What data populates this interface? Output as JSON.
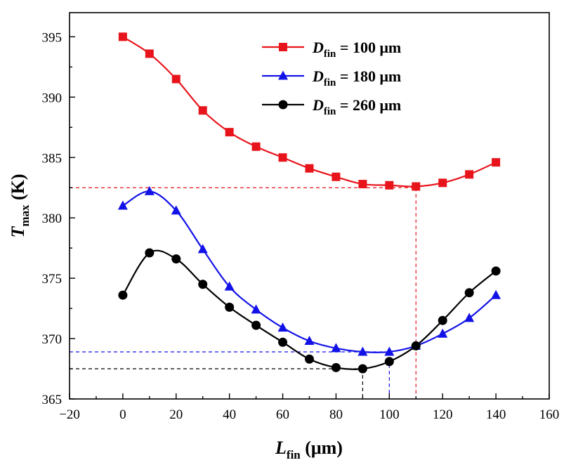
{
  "chart_data": {
    "type": "line",
    "xlabel": {
      "main": "L",
      "sub": "fin",
      "unit": " (μm)"
    },
    "ylabel": {
      "main": "T",
      "sub": "max",
      "unit": " (K)"
    },
    "xlim": [
      -20,
      160
    ],
    "ylim": [
      365,
      397
    ],
    "xticks": [
      -20,
      0,
      20,
      40,
      60,
      80,
      100,
      120,
      140,
      160
    ],
    "yticks": [
      365,
      370,
      375,
      380,
      385,
      390,
      395
    ],
    "grid": false,
    "legend_position": "top-right",
    "series": [
      {
        "legend": {
          "main": "D",
          "sub": "fin",
          "rest": " = 100 μm"
        },
        "color": "#e8141b",
        "marker": "square",
        "x": [
          0,
          10,
          20,
          30,
          40,
          50,
          60,
          70,
          80,
          90,
          100,
          110,
          120,
          130,
          140
        ],
        "y": [
          395.0,
          393.6,
          391.5,
          388.9,
          387.1,
          385.9,
          385.0,
          384.1,
          383.4,
          382.8,
          382.7,
          382.6,
          382.9,
          383.6,
          384.6
        ]
      },
      {
        "legend": {
          "main": "D",
          "sub": "fin",
          "rest": " = 180 μm"
        },
        "color": "#1212e8",
        "marker": "triangle",
        "x": [
          0,
          10,
          20,
          30,
          40,
          50,
          60,
          70,
          80,
          90,
          100,
          110,
          120,
          130,
          140
        ],
        "y": [
          381.0,
          382.2,
          380.6,
          377.4,
          374.3,
          372.4,
          370.9,
          369.8,
          369.2,
          368.9,
          368.9,
          369.4,
          370.4,
          371.7,
          373.6
        ]
      },
      {
        "legend": {
          "main": "D",
          "sub": "fin",
          "rest": " = 260 μm"
        },
        "color": "#000000",
        "marker": "circle",
        "x": [
          0,
          10,
          20,
          30,
          40,
          50,
          60,
          70,
          80,
          90,
          100,
          110,
          120,
          130,
          140
        ],
        "y": [
          373.6,
          377.1,
          376.6,
          374.5,
          372.6,
          371.1,
          369.7,
          368.3,
          367.6,
          367.5,
          368.1,
          369.4,
          371.5,
          373.8,
          375.6
        ]
      }
    ],
    "reference_lines": [
      {
        "x": 110,
        "y": 382.5,
        "color": "#e8141b"
      },
      {
        "x": 100,
        "y": 368.9,
        "color": "#1212e8"
      },
      {
        "x": 90,
        "y": 367.5,
        "color": "#000000"
      }
    ]
  }
}
